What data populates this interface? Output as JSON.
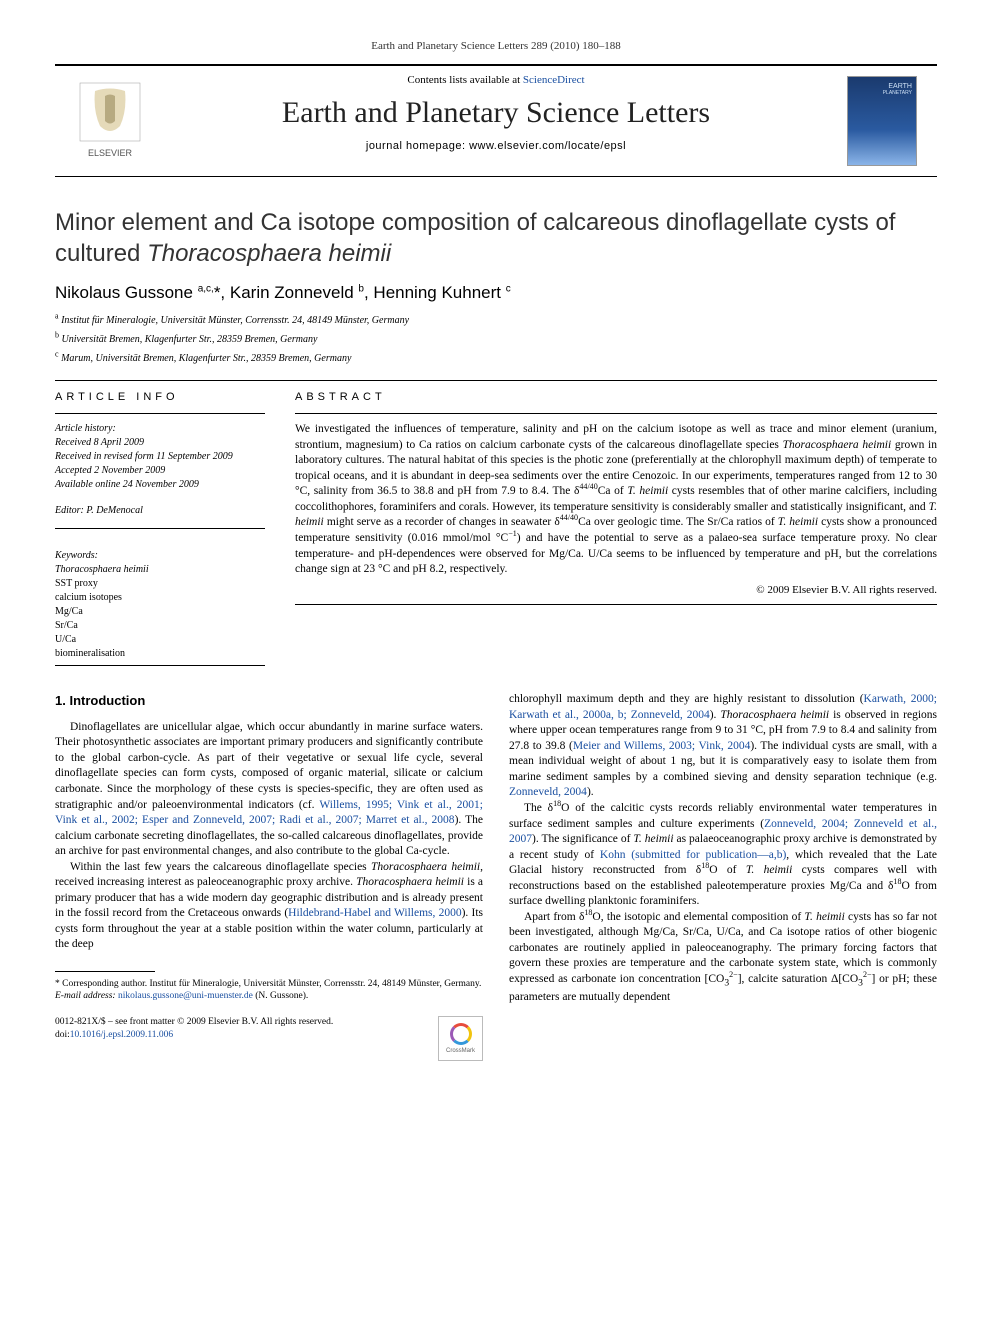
{
  "running_head": "Earth and Planetary Science Letters 289 (2010) 180–188",
  "topbar": {
    "contents_prefix": "Contents lists available at ",
    "contents_link": "ScienceDirect",
    "journal_title": "Earth and Planetary Science Letters",
    "homepage_prefix": "journal homepage: ",
    "homepage_url": "www.elsevier.com/locate/epsl",
    "elsevier_name": "ELSEVIER",
    "epsl_badge_l1": "EARTH",
    "epsl_badge_l2": "PLANETARY"
  },
  "title_html": "Minor element and Ca isotope composition of calcareous dinoflagellate cysts of cultured <em>Thoracosphaera heimii</em>",
  "authors_html": "Nikolaus Gussone <sup>a,c,</sup>*, Karin Zonneveld <sup>b</sup>, Henning Kuhnert <sup>c</sup>",
  "affiliations": [
    {
      "sup": "a",
      "text": "Institut für Mineralogie, Universität Münster, Corrensstr. 24, 48149 Münster, Germany"
    },
    {
      "sup": "b",
      "text": "Universität Bremen, Klagenfurter Str., 28359 Bremen, Germany"
    },
    {
      "sup": "c",
      "text": "Marum, Universität Bremen, Klagenfurter Str., 28359 Bremen, Germany"
    }
  ],
  "article_info": {
    "label": "ARTICLE INFO",
    "history_label": "Article history:",
    "history": [
      "Received 8 April 2009",
      "Received in revised form 11 September 2009",
      "Accepted 2 November 2009",
      "Available online 24 November 2009"
    ],
    "editor": "Editor: P. DeMenocal",
    "keywords_label": "Keywords:",
    "keywords": [
      "<em>Thoracosphaera heimii</em>",
      "SST proxy",
      "calcium isotopes",
      "Mg/Ca",
      "Sr/Ca",
      "U/Ca",
      "biomineralisation"
    ]
  },
  "abstract": {
    "label": "ABSTRACT",
    "text_html": "We investigated the influences of temperature, salinity and pH on the calcium isotope as well as trace and minor element (uranium, strontium, magnesium) to Ca ratios on calcium carbonate cysts of the calcareous dinoflagellate species <em>Thoracosphaera heimii</em> grown in laboratory cultures. The natural habitat of this species is the photic zone (preferentially at the chlorophyll maximum depth) of temperate to tropical oceans, and it is abundant in deep-sea sediments over the entire Cenozoic. In our experiments, temperatures ranged from 12 to 30 °C, salinity from 36.5 to 38.8 and pH from 7.9 to 8.4. The δ<sup>44/40</sup>Ca of <em>T. heimii</em> cysts resembles that of other marine calcifiers, including coccolithophores, foraminifers and corals. However, its temperature sensitivity is considerably smaller and statistically insignificant, and <em>T. heimii</em> might serve as a recorder of changes in seawater δ<sup>44/40</sup>Ca over geologic time. The Sr/Ca ratios of <em>T. heimii</em> cysts show a pronounced temperature sensitivity (0.016 mmol/mol °C<sup>−1</sup>) and have the potential to serve as a palaeo-sea surface temperature proxy. No clear temperature- and pH-dependences were observed for Mg/Ca. U/Ca seems to be influenced by temperature and pH, but the correlations change sign at 23 °C and pH 8.2, respectively.",
    "copyright": "© 2009 Elsevier B.V. All rights reserved."
  },
  "intro": {
    "heading": "1. Introduction",
    "p1_html": "Dinoflagellates are unicellular algae, which occur abundantly in marine surface waters. Their photosynthetic associates are important primary producers and significantly contribute to the global carbon-cycle. As part of their vegetative or sexual life cycle, several dinoflagellate species can form cysts, composed of organic material, silicate or calcium carbonate. Since the morphology of these cysts is species-specific, they are often used as stratigraphic and/or paleoenvironmental indicators (cf. <a>Willems, 1995; Vink et al., 2001; Vink et al., 2002; Esper and Zonneveld, 2007; Radi et al., 2007; Marret et al., 2008</a>). The calcium carbonate secreting dinoflagellates, the so-called calcareous dinoflagellates, provide an archive for past environmental changes, and also contribute to the global Ca-cycle.",
    "p2_html": "Within the last few years the calcareous dinoflagellate species <em>Thoracosphaera heimii</em>, received increasing interest as paleoceanographic proxy archive. <em>Thoracosphaera heimii</em> is a primary producer that has a wide modern day geographic distribution and is already present in the fossil record from the Cretaceous onwards (<a>Hildebrand-Habel and Willems, 2000</a>). Its cysts form throughout the year at a stable position within the water column, particularly at the deep",
    "p3_html": "chlorophyll maximum depth and they are highly resistant to dissolution (<a>Karwath, 2000; Karwath et al., 2000a, b; Zonneveld, 2004</a>). <em>Thoracosphaera heimii</em> is observed in regions where upper ocean temperatures range from 9 to 31 °C, pH from 7.9 to 8.4 and salinity from 27.8 to 39.8 (<a>Meier and Willems, 2003; Vink, 2004</a>). The individual cysts are small, with a mean individual weight of about 1 ng, but it is comparatively easy to isolate them from marine sediment samples by a combined sieving and density separation technique (e.g. <a>Zonneveld, 2004</a>).",
    "p4_html": "The δ<sup>18</sup>O of the calcitic cysts records reliably environmental water temperatures in surface sediment samples and culture experiments (<a>Zonneveld, 2004; Zonneveld et al., 2007</a>). The significance of <em>T. heimii</em> as palaeoceanographic proxy archive is demonstrated by a recent study of <a>Kohn (submitted for publication—a,b)</a>, which revealed that the Late Glacial history reconstructed from δ<sup>18</sup>O of <em>T. heimii</em> cysts compares well with reconstructions based on the established paleotemperature proxies Mg/Ca and δ<sup>18</sup>O from surface dwelling planktonic foraminifers.",
    "p5_html": "Apart from δ<sup>18</sup>O, the isotopic and elemental composition of <em>T. heimii</em> cysts has so far not been investigated, although Mg/Ca, Sr/Ca, U/Ca, and Ca isotope ratios of other biogenic carbonates are routinely applied in paleoceanography. The primary forcing factors that govern these proxies are temperature and the carbonate system state, which is commonly expressed as carbonate ion concentration [CO<sub>3</sub><sup>2−</sup>], calcite saturation Δ[CO<sub>3</sub><sup>2−</sup>] or pH; these parameters are mutually dependent"
  },
  "footnotes": {
    "corr_html": "* Corresponding author. Institut für Mineralogie, Universität Münster, Corrensstr. 24, 48149 Münster, Germany.",
    "email_label": "E-mail address: ",
    "email": "nikolaus.gussone@uni-muenster.de",
    "email_suffix": " (N. Gussone)."
  },
  "footer": {
    "line1": "0012-821X/$ – see front matter © 2009 Elsevier B.V. All rights reserved.",
    "doi_label": "doi:",
    "doi": "10.1016/j.epsl.2009.11.006",
    "crossmark": "CrossMark"
  },
  "colors": {
    "link": "#1a4fa0",
    "text": "#000000",
    "rule": "#000000"
  }
}
